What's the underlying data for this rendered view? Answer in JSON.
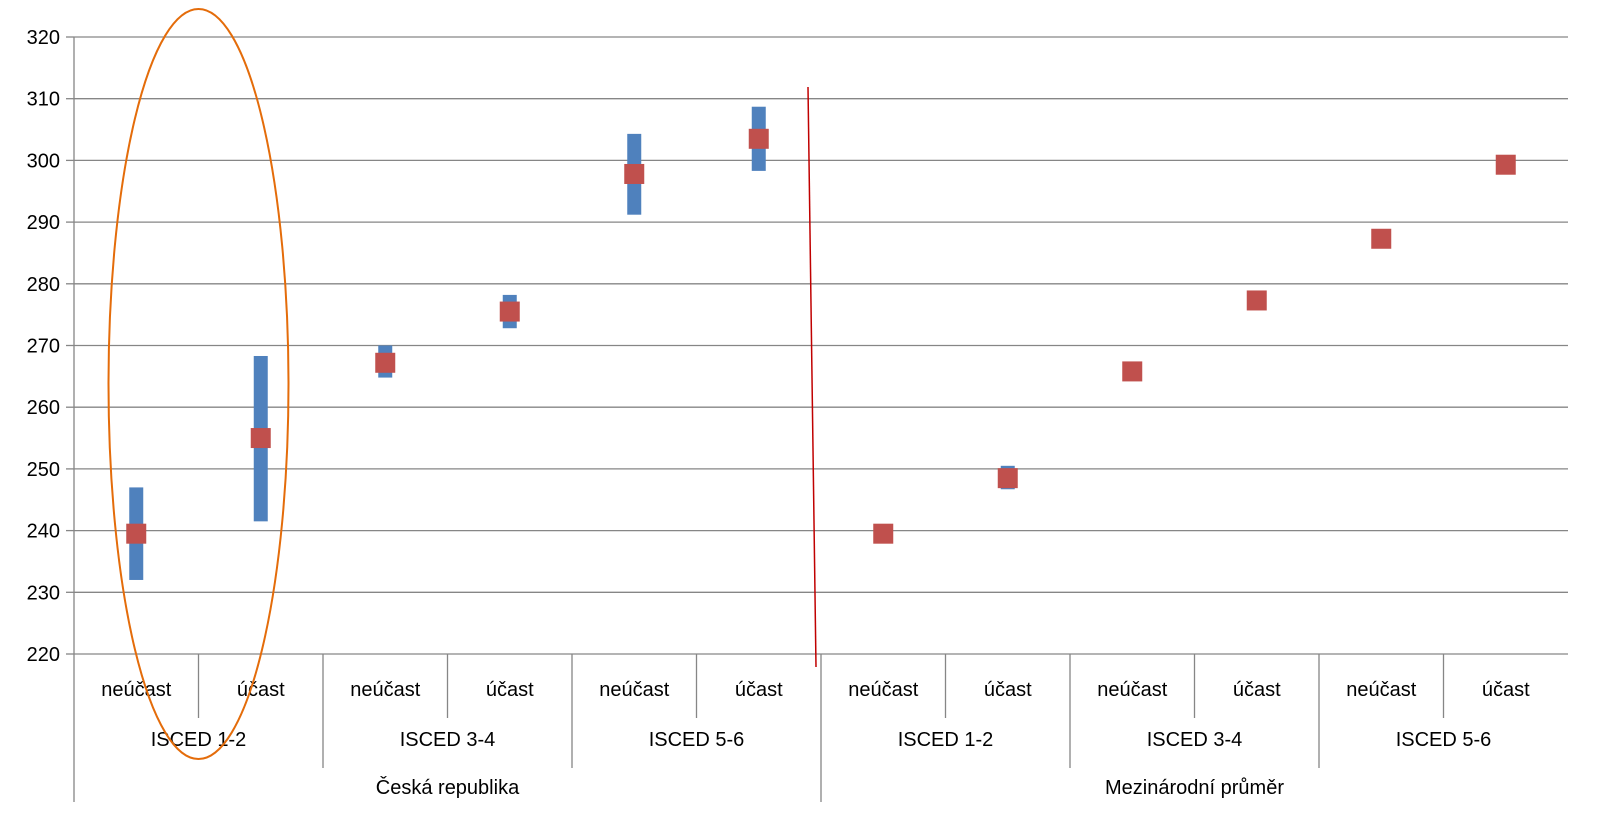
{
  "chart_data": {
    "type": "scatter",
    "title": "",
    "xlabel": "",
    "ylabel": "",
    "ylim": [
      220,
      320
    ],
    "yticks": [
      220,
      230,
      240,
      250,
      260,
      270,
      280,
      290,
      300,
      310,
      320
    ],
    "grid": true,
    "legend": "none",
    "groups": [
      {
        "label": "Česká republika",
        "subgroups": [
          {
            "label": "ISCED 1-2",
            "categories": [
              "neúčast",
              "účast"
            ]
          },
          {
            "label": "ISCED  3-4",
            "categories": [
              "neúčast",
              "účast"
            ]
          },
          {
            "label": "ISCED 5-6",
            "categories": [
              "neúčast",
              "účast"
            ]
          }
        ]
      },
      {
        "label": "Mezinárodní průměr",
        "subgroups": [
          {
            "label": "ISCED 1-2",
            "categories": [
              "neúčast",
              "účast"
            ]
          },
          {
            "label": "ISCED  3-4",
            "categories": [
              "neúčast",
              "účast"
            ]
          },
          {
            "label": "ISCED 5-6",
            "categories": [
              "neúčast",
              "účast"
            ]
          }
        ]
      }
    ],
    "points": [
      239.5,
      255.0,
      267.2,
      275.5,
      297.8,
      303.5,
      239.5,
      248.5,
      265.8,
      277.3,
      287.3,
      299.3
    ],
    "ranges": [
      [
        232.0,
        247.0
      ],
      [
        241.5,
        268.3
      ],
      [
        264.8,
        270.0
      ],
      [
        272.8,
        278.2
      ],
      [
        291.2,
        304.3
      ],
      [
        298.3,
        308.7
      ],
      null,
      [
        246.7,
        250.5
      ],
      null,
      null,
      null,
      null
    ],
    "colors": {
      "point": "#c0504d",
      "range": "#4f81bd",
      "highlight": "#e46c0a",
      "divider": "#c00000",
      "grid": "#868686"
    }
  }
}
